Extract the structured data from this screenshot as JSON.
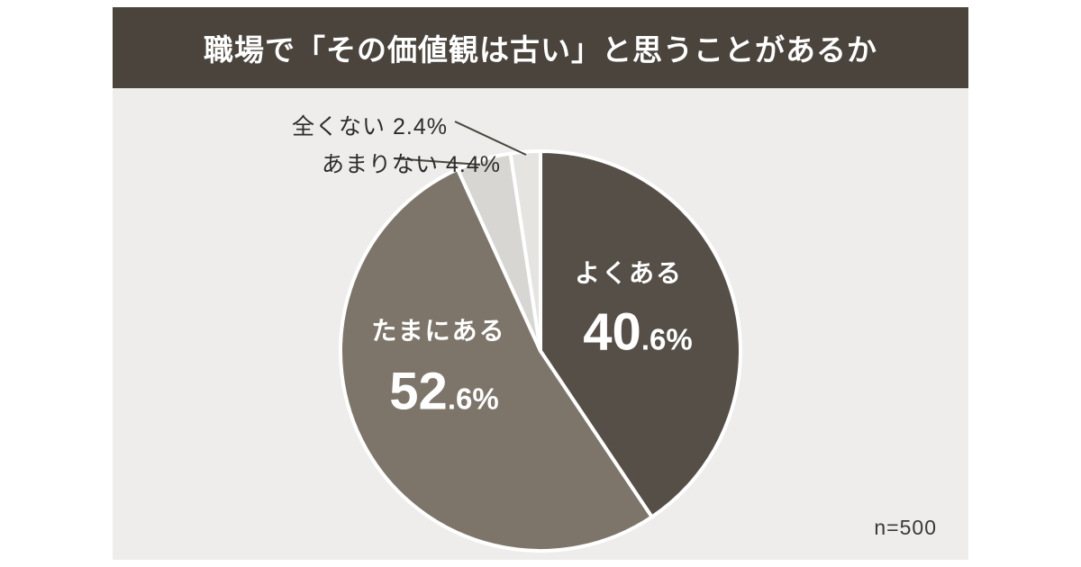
{
  "header": {
    "title": "職場で「その価値観は古い」と思うことがあるか",
    "bg_color": "#4a443c"
  },
  "footer": {
    "sample_size": "n=500"
  },
  "chart_data": {
    "type": "pie",
    "title": "職場で「その価値観は古い」と思うことがあるか",
    "start_angle_deg": 0,
    "direction": "clockwise",
    "sample_size": "n=500",
    "background_color": "#eeedec",
    "separator_color": "#ffffff",
    "slices": [
      {
        "label": "よくある",
        "value": 40.6,
        "big": "40",
        "small": ".6%",
        "display_value": "40.6%",
        "color": "#564f47",
        "label_style": "inside"
      },
      {
        "label": "たまにある",
        "value": 52.6,
        "big": "52",
        "small": ".6%",
        "display_value": "52.6%",
        "color": "#7d7569",
        "label_style": "inside"
      },
      {
        "label": "あまりない",
        "value": 4.4,
        "display_value": "4.4%",
        "color": "#d7d6d3",
        "label_style": "callout"
      },
      {
        "label": "全くない",
        "value": 2.4,
        "display_value": "2.4%",
        "color": "#e5e4e1",
        "label_style": "callout"
      }
    ]
  }
}
